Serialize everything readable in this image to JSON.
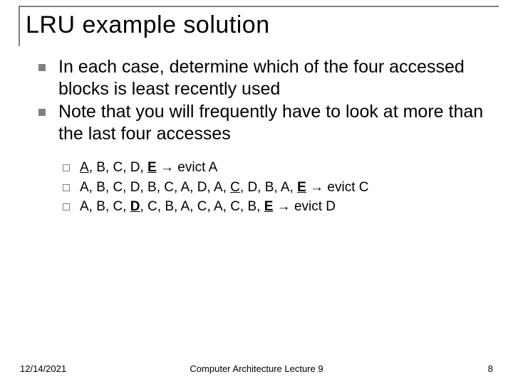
{
  "title": "LRU example solution",
  "bullets_lvl1": [
    "In each case, determine which of the four accessed blocks is least recently used",
    "Note that you will frequently have to look at more than the last four accesses"
  ],
  "examples": [
    {
      "seq": [
        {
          "t": "A",
          "u": true,
          "b": false
        },
        {
          "t": ", B, C, D, ",
          "u": false,
          "b": false
        },
        {
          "t": "E",
          "u": true,
          "b": true
        },
        {
          "t": " → evict A",
          "u": false,
          "b": false
        }
      ]
    },
    {
      "seq": [
        {
          "t": "A, B, C, D, B, C, A, D, A, ",
          "u": false,
          "b": false
        },
        {
          "t": "C",
          "u": true,
          "b": false
        },
        {
          "t": ", D, B, A, ",
          "u": false,
          "b": false
        },
        {
          "t": "E",
          "u": true,
          "b": true
        },
        {
          "t": " → evict C",
          "u": false,
          "b": false
        }
      ]
    },
    {
      "seq": [
        {
          "t": "A, B, C, ",
          "u": false,
          "b": false
        },
        {
          "t": "D",
          "u": true,
          "b": true
        },
        {
          "t": ", C, B, A, C, A, C, B, ",
          "u": false,
          "b": false
        },
        {
          "t": "E",
          "u": true,
          "b": true
        },
        {
          "t": " → evict D",
          "u": false,
          "b": false
        }
      ]
    }
  ],
  "footer": {
    "date": "12/14/2021",
    "center": "Computer Architecture Lecture 9",
    "page": "8"
  },
  "colors": {
    "border": "#808080",
    "text": "#000000",
    "background": "#ffffff"
  },
  "fonts": {
    "title_size": 34,
    "body_size": 25,
    "sub_size": 19,
    "footer_size": 13
  }
}
